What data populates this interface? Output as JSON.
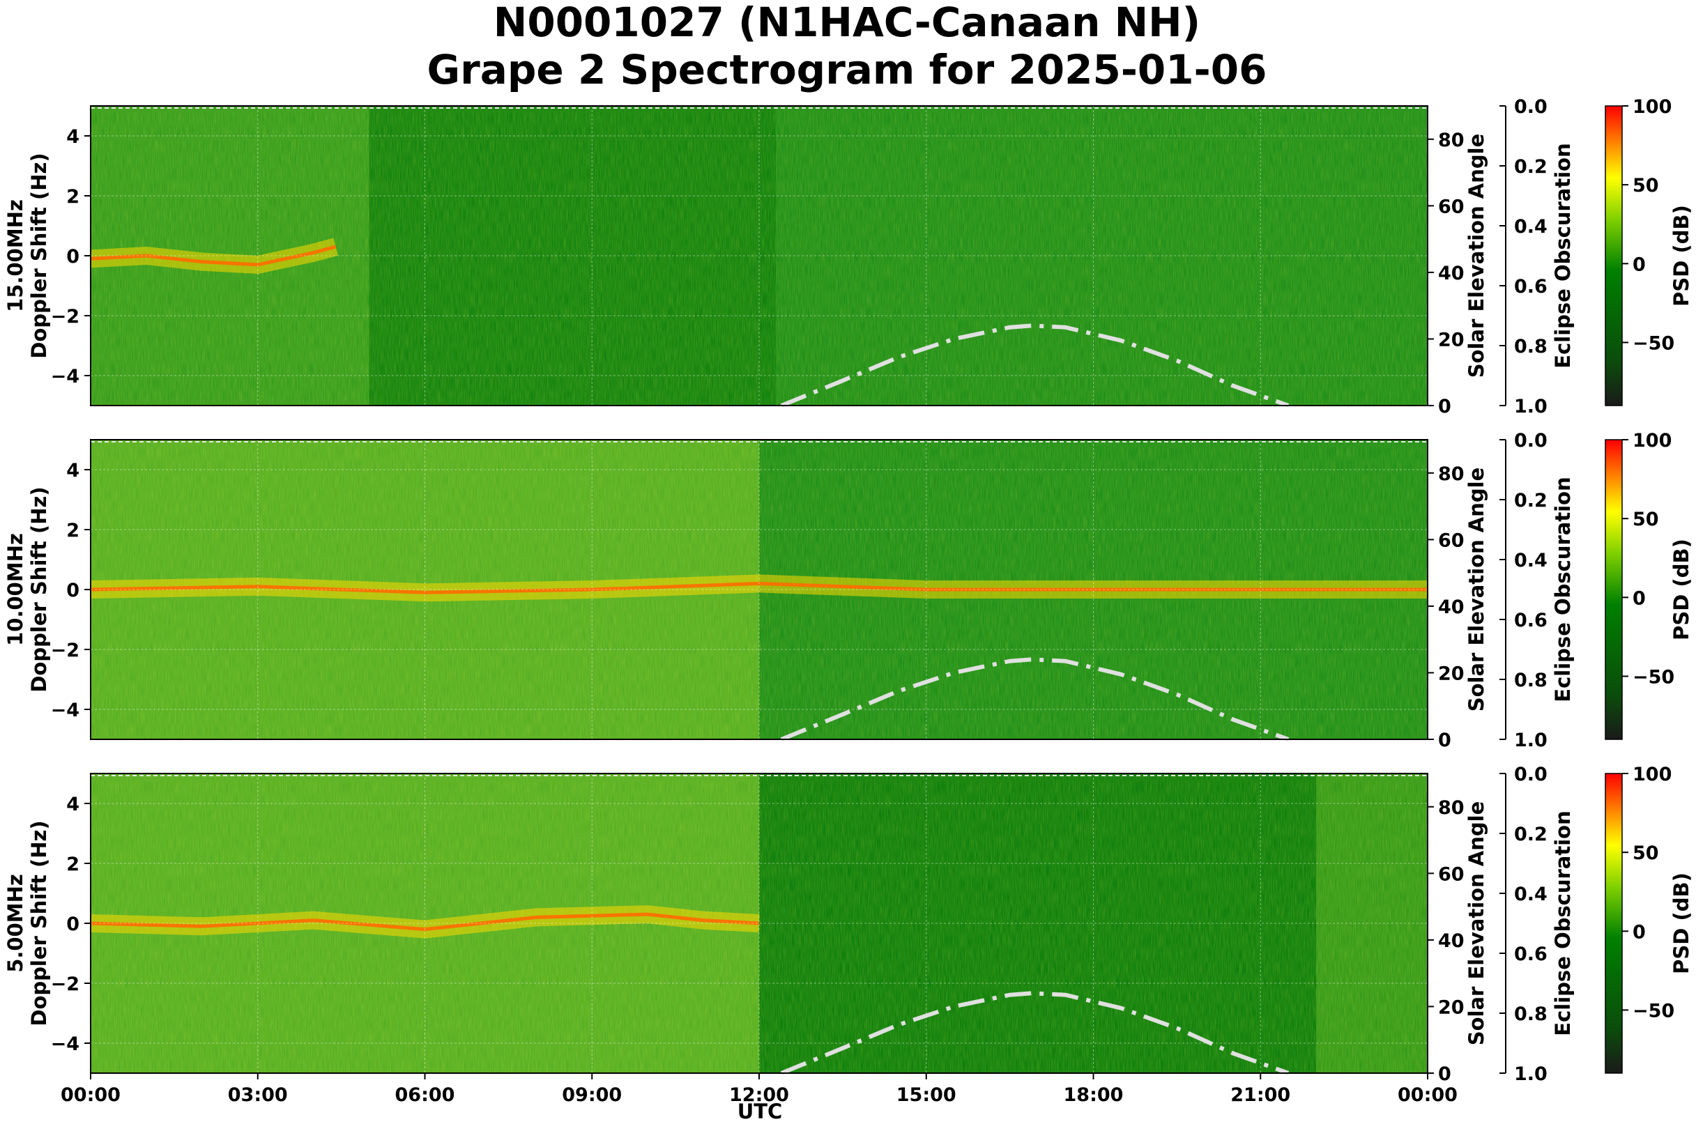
{
  "chart_data": {
    "type": "heatmap",
    "title_line1": "N0001027 (N1HAC-Canaan NH)",
    "title_line2": "Grape 2 Spectrogram for 2025-01-06",
    "xlabel": "UTC",
    "x_ticks": [
      "00:00",
      "03:00",
      "06:00",
      "09:00",
      "12:00",
      "15:00",
      "18:00",
      "21:00",
      "00:00"
    ],
    "xlim_hours": [
      0,
      24
    ],
    "y_ticks": [
      "4",
      "2",
      "0",
      "−2",
      "−4"
    ],
    "ylim": [
      -5,
      5
    ],
    "y2label": "Solar Elevation Angle",
    "y2_ticks": [
      "80",
      "60",
      "40",
      "20",
      "0"
    ],
    "y2lim": [
      0,
      90
    ],
    "y3label": "Eclipse Obscuration",
    "y3_ticks": [
      "0.0",
      "0.2",
      "0.4",
      "0.6",
      "0.8",
      "1.0"
    ],
    "y3lim": [
      0,
      1
    ],
    "colorbar_label": "PSD (dB)",
    "colorbar_ticks": [
      "100",
      "50",
      "0",
      "−50"
    ],
    "colorbar_range": [
      -90,
      100
    ],
    "colormap": [
      "#1a1a1a",
      "#0b4d0b",
      "#008000",
      "#7fd000",
      "#ffff00",
      "#ff8000",
      "#ff0000"
    ],
    "solar_elevation_curve": {
      "hours": [
        12.4,
        13.5,
        14.5,
        15.5,
        16.5,
        16.9,
        17.5,
        18.5,
        19.5,
        20.5,
        21.5
      ],
      "degrees": [
        0,
        7.5,
        14.5,
        20,
        23.5,
        24,
        23.5,
        19.5,
        13.5,
        6,
        0
      ],
      "style": "dash-dot",
      "color": "#e0e0e0"
    },
    "panels": [
      {
        "ylabel_line1": "15.00MHz",
        "ylabel_line2": "Doppler Shift (Hz)",
        "carrier_trace": {
          "hours": [
            0,
            1,
            2,
            3,
            4,
            4.4
          ],
          "doppler": [
            -0.1,
            0,
            -0.2,
            -0.3,
            0.1,
            0.3
          ]
        },
        "background_levels_db": {
          "00-05h": 10,
          "05-12h": -5,
          "13-24h": 20
        }
      },
      {
        "ylabel_line1": "10.00MHz",
        "ylabel_line2": "Doppler Shift (Hz)",
        "carrier_trace": {
          "hours": [
            0,
            3,
            6,
            9,
            12,
            15,
            18,
            21,
            24
          ],
          "doppler": [
            0,
            0.1,
            -0.1,
            0,
            0.2,
            0,
            0,
            0,
            0
          ]
        },
        "background_levels_db": {
          "00-12h": 25,
          "12-24h": 10
        }
      },
      {
        "ylabel_line1": "5.00MHz",
        "ylabel_line2": "Doppler Shift (Hz)",
        "carrier_trace": {
          "hours": [
            0,
            2,
            4,
            6,
            8,
            10,
            11,
            12
          ],
          "doppler": [
            0,
            -0.1,
            0.1,
            -0.2,
            0.2,
            0.3,
            0.1,
            0
          ]
        },
        "background_levels_db": {
          "00-12h": 30,
          "12-22h": -10,
          "22-24h": 20
        }
      }
    ]
  }
}
